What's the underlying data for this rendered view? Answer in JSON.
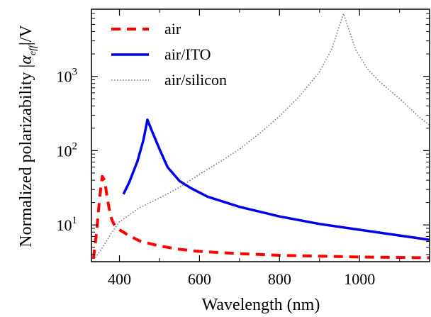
{
  "chart_data": {
    "type": "line",
    "xlabel": "Wavelength (nm)",
    "ylabel_main": "Normalized polarizability |",
    "ylabel_alpha": "α",
    "ylabel_sub": "eff",
    "ylabel_tail": "|/V",
    "xlim": [
      330,
      1175
    ],
    "ylim": [
      3.2,
      8000
    ],
    "yscale": "log",
    "grid": false,
    "legend_position": "top-left",
    "x_ticks": [
      {
        "value": 400,
        "label": "400"
      },
      {
        "value": 600,
        "label": "600"
      },
      {
        "value": 800,
        "label": "800"
      },
      {
        "value": 1000,
        "label": "1000"
      }
    ],
    "y_ticks": [
      {
        "value": 10,
        "base": "10",
        "exp": "1"
      },
      {
        "value": 100,
        "base": "10",
        "exp": "2"
      },
      {
        "value": 1000,
        "base": "10",
        "exp": "3"
      }
    ],
    "series": [
      {
        "name": "air",
        "color": "#ff0000",
        "style": "dashed",
        "points": [
          [
            335,
            3.5
          ],
          [
            343,
            8
          ],
          [
            350,
            22
          ],
          [
            357,
            45
          ],
          [
            363,
            40
          ],
          [
            370,
            22
          ],
          [
            378,
            13
          ],
          [
            385,
            10.5
          ],
          [
            392,
            9.3
          ],
          [
            400,
            8.6
          ],
          [
            420,
            7.4
          ],
          [
            450,
            6.1
          ],
          [
            500,
            5.2
          ],
          [
            550,
            4.7
          ],
          [
            600,
            4.4
          ],
          [
            700,
            4.1
          ],
          [
            800,
            3.9
          ],
          [
            900,
            3.8
          ],
          [
            1000,
            3.7
          ],
          [
            1100,
            3.65
          ],
          [
            1175,
            3.6
          ]
        ]
      },
      {
        "name": "air/ITO",
        "color": "#0000ee",
        "style": "solid",
        "points": [
          [
            410,
            26
          ],
          [
            425,
            38
          ],
          [
            445,
            72
          ],
          [
            460,
            140
          ],
          [
            470,
            260
          ],
          [
            480,
            190
          ],
          [
            500,
            105
          ],
          [
            520,
            60
          ],
          [
            550,
            39
          ],
          [
            580,
            31
          ],
          [
            620,
            24
          ],
          [
            700,
            17.5
          ],
          [
            800,
            13
          ],
          [
            900,
            10.3
          ],
          [
            1000,
            8.6
          ],
          [
            1100,
            7.2
          ],
          [
            1175,
            6.3
          ]
        ]
      },
      {
        "name": "air/silicon",
        "color": "#777777",
        "style": "dotted",
        "points": [
          [
            340,
            3.6
          ],
          [
            360,
            5.2
          ],
          [
            380,
            7.8
          ],
          [
            400,
            11
          ],
          [
            450,
            17
          ],
          [
            500,
            23
          ],
          [
            550,
            32
          ],
          [
            600,
            48
          ],
          [
            650,
            70
          ],
          [
            700,
            105
          ],
          [
            750,
            170
          ],
          [
            800,
            290
          ],
          [
            850,
            540
          ],
          [
            900,
            1150
          ],
          [
            930,
            2300
          ],
          [
            950,
            4800
          ],
          [
            960,
            7000
          ],
          [
            970,
            4800
          ],
          [
            990,
            2300
          ],
          [
            1020,
            1250
          ],
          [
            1050,
            850
          ],
          [
            1100,
            500
          ],
          [
            1150,
            280
          ],
          [
            1175,
            220
          ]
        ]
      }
    ]
  }
}
